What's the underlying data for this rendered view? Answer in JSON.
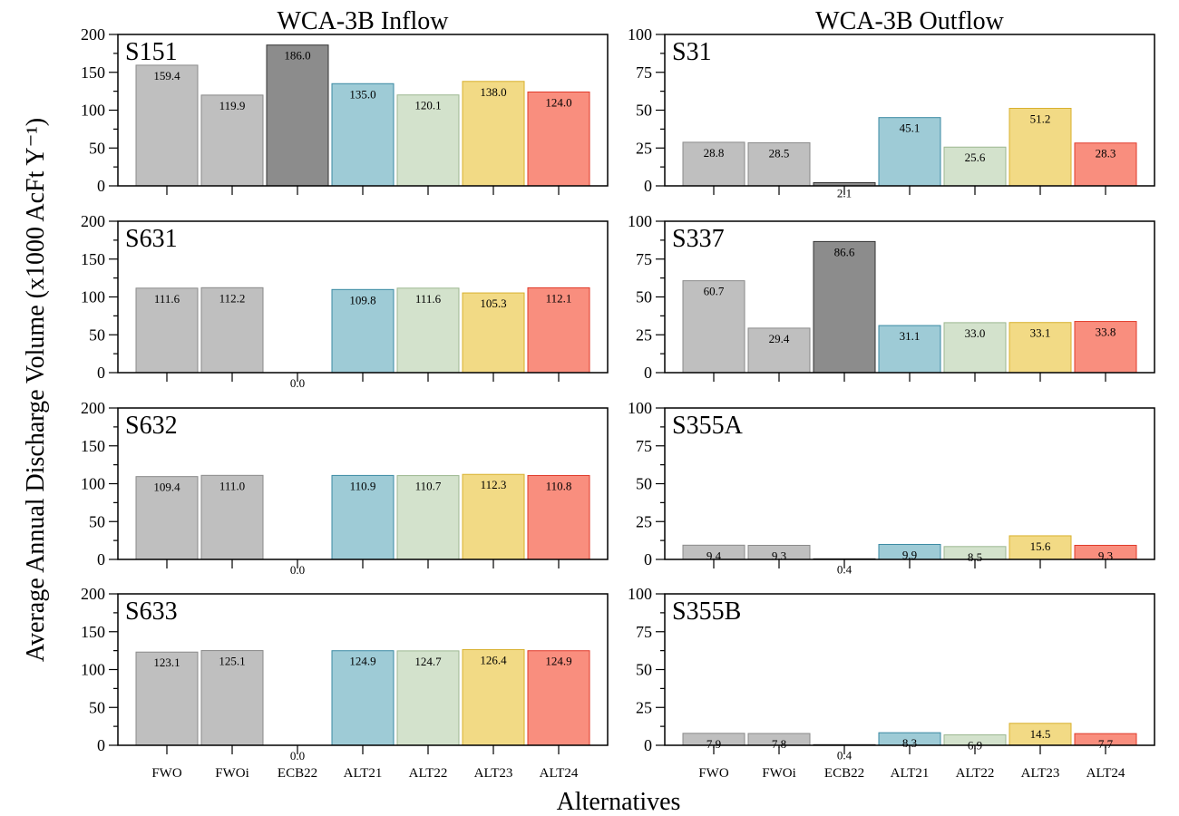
{
  "figure": {
    "column_titles": [
      "WCA-3B Inflow",
      "WCA-3B Outflow"
    ],
    "ylabel": "Average Annual Discharge Volume (x1000 AcFt Y⁻¹)",
    "xlabel": "Alternatives"
  },
  "colors": {
    "FWO": "#bfbfbf",
    "FWOi": "#bfbfbf",
    "ECB22": "#8c8c8c",
    "ALT21": "#9ecbd6",
    "ALT22": "#d3e2cc",
    "ALT23": "#f2da85",
    "ALT24": "#f98e7e"
  },
  "edge_colors": {
    "FWO": "#8a8a8a",
    "FWOi": "#8a8a8a",
    "ECB22": "#333333",
    "ALT21": "#3a8aa3",
    "ALT22": "#9cb790",
    "ALT23": "#d8b02e",
    "ALT24": "#e03a2a"
  },
  "chart_data": [
    {
      "type": "bar",
      "title": "S151",
      "column": 0,
      "row": 0,
      "categories": [
        "FWO",
        "FWOi",
        "ECB22",
        "ALT21",
        "ALT22",
        "ALT23",
        "ALT24"
      ],
      "values": [
        159.4,
        119.9,
        186.0,
        135.0,
        120.1,
        138.0,
        124.0
      ],
      "value_labels": [
        "159.4",
        "119.9",
        "186.0",
        "135.0",
        "120.1",
        "138.0",
        "124.0"
      ],
      "ylim": [
        0,
        200
      ],
      "yticks": [
        0,
        50,
        100,
        150,
        200
      ],
      "show_xlabels": false
    },
    {
      "type": "bar",
      "title": "S631",
      "column": 0,
      "row": 1,
      "categories": [
        "FWO",
        "FWOi",
        "ECB22",
        "ALT21",
        "ALT22",
        "ALT23",
        "ALT24"
      ],
      "values": [
        111.6,
        112.2,
        0.0,
        109.8,
        111.6,
        105.3,
        112.1
      ],
      "value_labels": [
        "111.6",
        "112.2",
        "0.0",
        "109.8",
        "111.6",
        "105.3",
        "112.1"
      ],
      "ylim": [
        0,
        200
      ],
      "yticks": [
        0,
        50,
        100,
        150,
        200
      ],
      "show_xlabels": false
    },
    {
      "type": "bar",
      "title": "S632",
      "column": 0,
      "row": 2,
      "categories": [
        "FWO",
        "FWOi",
        "ECB22",
        "ALT21",
        "ALT22",
        "ALT23",
        "ALT24"
      ],
      "values": [
        109.4,
        111.0,
        0.0,
        110.9,
        110.7,
        112.3,
        110.8
      ],
      "value_labels": [
        "109.4",
        "111.0",
        "0.0",
        "110.9",
        "110.7",
        "112.3",
        "110.8"
      ],
      "ylim": [
        0,
        200
      ],
      "yticks": [
        0,
        50,
        100,
        150,
        200
      ],
      "show_xlabels": false
    },
    {
      "type": "bar",
      "title": "S633",
      "column": 0,
      "row": 3,
      "categories": [
        "FWO",
        "FWOi",
        "ECB22",
        "ALT21",
        "ALT22",
        "ALT23",
        "ALT24"
      ],
      "values": [
        123.1,
        125.1,
        0.0,
        124.9,
        124.7,
        126.4,
        124.9
      ],
      "value_labels": [
        "123.1",
        "125.1",
        "0.0",
        "124.9",
        "124.7",
        "126.4",
        "124.9"
      ],
      "ylim": [
        0,
        200
      ],
      "yticks": [
        0,
        50,
        100,
        150,
        200
      ],
      "show_xlabels": true
    },
    {
      "type": "bar",
      "title": "S31",
      "column": 1,
      "row": 0,
      "categories": [
        "FWO",
        "FWOi",
        "ECB22",
        "ALT21",
        "ALT22",
        "ALT23",
        "ALT24"
      ],
      "values": [
        28.8,
        28.5,
        2.1,
        45.1,
        25.6,
        51.2,
        28.3
      ],
      "value_labels": [
        "28.8",
        "28.5",
        "2.1",
        "45.1",
        "25.6",
        "51.2",
        "28.3"
      ],
      "ylim": [
        0,
        100
      ],
      "yticks": [
        0,
        25,
        50,
        75,
        100
      ],
      "show_xlabels": false
    },
    {
      "type": "bar",
      "title": "S337",
      "column": 1,
      "row": 1,
      "categories": [
        "FWO",
        "FWOi",
        "ECB22",
        "ALT21",
        "ALT22",
        "ALT23",
        "ALT24"
      ],
      "values": [
        60.7,
        29.4,
        86.6,
        31.1,
        33.0,
        33.1,
        33.8
      ],
      "value_labels": [
        "60.7",
        "29.4",
        "86.6",
        "31.1",
        "33.0",
        "33.1",
        "33.8"
      ],
      "ylim": [
        0,
        100
      ],
      "yticks": [
        0,
        25,
        50,
        75,
        100
      ],
      "show_xlabels": false
    },
    {
      "type": "bar",
      "title": "S355A",
      "column": 1,
      "row": 2,
      "categories": [
        "FWO",
        "FWOi",
        "ECB22",
        "ALT21",
        "ALT22",
        "ALT23",
        "ALT24"
      ],
      "values": [
        9.4,
        9.3,
        0.4,
        9.9,
        8.5,
        15.6,
        9.3
      ],
      "value_labels": [
        "9.4",
        "9.3",
        "0.4",
        "9.9",
        "8.5",
        "15.6",
        "9.3"
      ],
      "ylim": [
        0,
        100
      ],
      "yticks": [
        0,
        25,
        50,
        75,
        100
      ],
      "show_xlabels": false
    },
    {
      "type": "bar",
      "title": "S355B",
      "column": 1,
      "row": 3,
      "categories": [
        "FWO",
        "FWOi",
        "ECB22",
        "ALT21",
        "ALT22",
        "ALT23",
        "ALT24"
      ],
      "values": [
        7.9,
        7.8,
        0.4,
        8.3,
        6.9,
        14.5,
        7.7
      ],
      "value_labels": [
        "7.9",
        "7.8",
        "0.4",
        "8.3",
        "6.9",
        "14.5",
        "7.7"
      ],
      "ylim": [
        0,
        100
      ],
      "yticks": [
        0,
        25,
        50,
        75,
        100
      ],
      "show_xlabels": true
    }
  ]
}
